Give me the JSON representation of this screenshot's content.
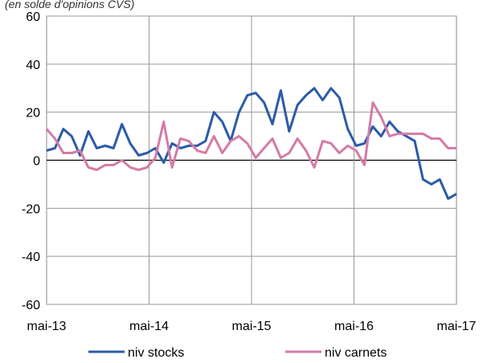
{
  "chart_data": {
    "type": "line",
    "title": "(en solde d'opinions CVS)",
    "xlabel": "",
    "ylabel": "",
    "ylim": [
      -60,
      60
    ],
    "yticks": [
      60,
      40,
      20,
      0,
      -20,
      -40,
      -60
    ],
    "xticks": [
      "mai-13",
      "mai-14",
      "mai-15",
      "mai-16",
      "mai-17"
    ],
    "grid": true,
    "legend": "bottom",
    "series": [
      {
        "name": "niv stocks",
        "color": "#2b5ba8",
        "values": [
          4,
          5,
          13,
          10,
          2,
          12,
          5,
          6,
          5,
          15,
          7,
          2,
          3,
          5,
          -1,
          7,
          5,
          6,
          6,
          8,
          20,
          16,
          8,
          20,
          27,
          28,
          24,
          15,
          29,
          12,
          23,
          27,
          30,
          25,
          30,
          26,
          13,
          6,
          7,
          14,
          10,
          16,
          12,
          10,
          8,
          -8,
          -10,
          -8,
          -16,
          -14
        ]
      },
      {
        "name": "niv carnets",
        "color": "#d47ba6",
        "values": [
          13,
          9,
          3,
          3,
          4,
          -3,
          -4,
          -2,
          -2,
          0,
          -3,
          -4,
          -3,
          1,
          16,
          -3,
          9,
          8,
          4,
          3,
          10,
          3,
          8,
          10,
          7,
          1,
          5,
          9,
          1,
          3,
          9,
          4,
          -3,
          8,
          7,
          3,
          6,
          4,
          -2,
          24,
          18,
          10,
          11,
          11,
          11,
          11,
          9,
          9,
          5,
          5
        ]
      }
    ]
  }
}
